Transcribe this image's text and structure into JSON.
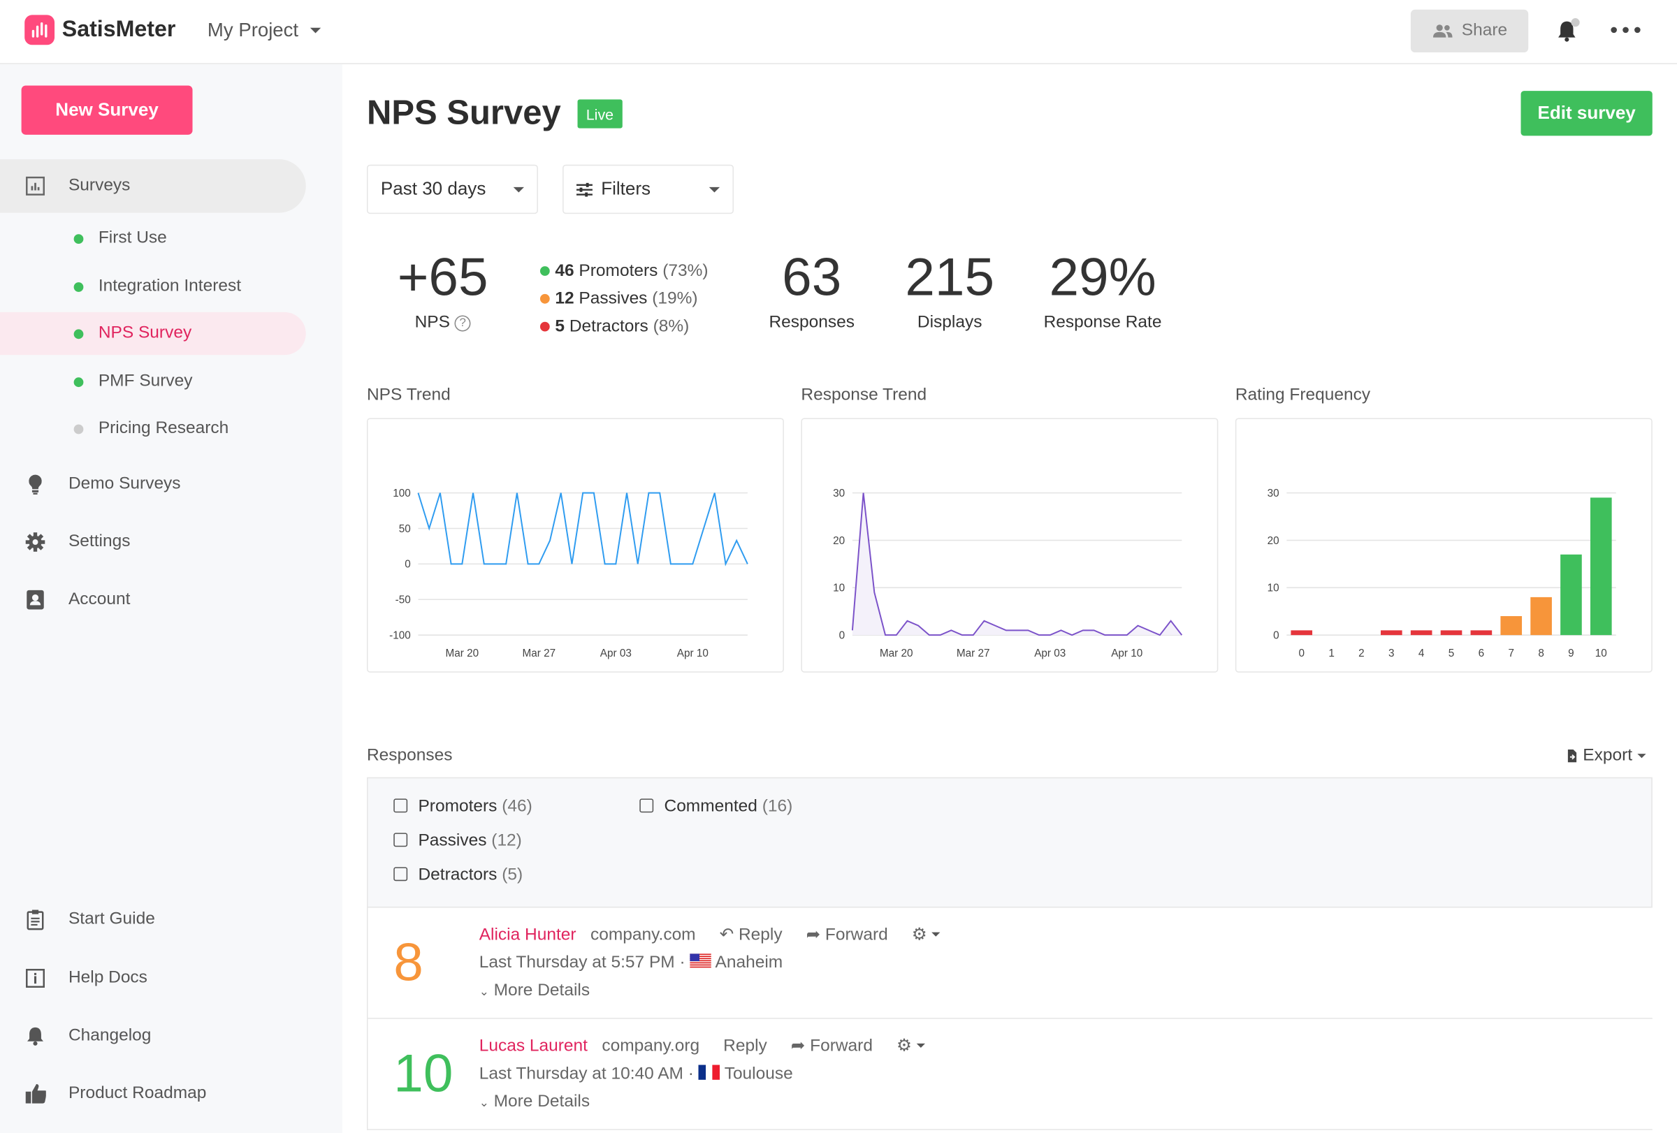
{
  "header": {
    "brand": "SatisMeter",
    "project": "My Project",
    "share": "Share"
  },
  "sidebar": {
    "new_survey": "New Survey",
    "surveys": "Surveys",
    "survey_items": [
      {
        "label": "First Use",
        "status": "active"
      },
      {
        "label": "Integration Interest",
        "status": "active"
      },
      {
        "label": "NPS Survey",
        "status": "active",
        "selected": true
      },
      {
        "label": "PMF Survey",
        "status": "active"
      },
      {
        "label": "Pricing Research",
        "status": "inactive"
      }
    ],
    "items": [
      {
        "label": "Demo Surveys",
        "icon": "lightbulb-icon"
      },
      {
        "label": "Settings",
        "icon": "gear-icon"
      },
      {
        "label": "Account",
        "icon": "contact-card-icon"
      }
    ],
    "bottom": [
      {
        "label": "Start Guide",
        "icon": "clipboard-icon"
      },
      {
        "label": "Help Docs",
        "icon": "info-book-icon"
      },
      {
        "label": "Changelog",
        "icon": "bell-icon"
      },
      {
        "label": "Product Roadmap",
        "icon": "thumbs-up-icon"
      }
    ]
  },
  "main": {
    "title": "NPS Survey",
    "badge": "Live",
    "edit": "Edit survey",
    "period": "Past 30 days",
    "filters": "Filters",
    "stats": {
      "nps": "+65",
      "nps_label": "NPS",
      "promoters_n": "46",
      "promoters_l": "Promoters",
      "promoters_p": "(73%)",
      "passives_n": "12",
      "passives_l": "Passives",
      "passives_p": "(19%)",
      "detractors_n": "5",
      "detractors_l": "Detractors",
      "detractors_p": "(8%)",
      "responses": "63",
      "responses_label": "Responses",
      "displays": "215",
      "displays_label": "Displays",
      "rate": "29%",
      "rate_label": "Response Rate"
    },
    "responses_title": "Responses",
    "export": "Export",
    "filter_opts": [
      {
        "label": "Promoters",
        "count": "(46)"
      },
      {
        "label": "Passives",
        "count": "(12)"
      },
      {
        "label": "Detractors",
        "count": "(5)"
      },
      {
        "label": "Commented",
        "count": "(16)"
      }
    ],
    "rows": [
      {
        "score": "8",
        "color": "#f7953a",
        "name": "Alicia Hunter",
        "company": "company.com",
        "reply": "Reply",
        "forward": "Forward",
        "time": "Last Thursday at 5:57 PM",
        "city": "Anaheim",
        "flag": "us",
        "more": "More Details"
      },
      {
        "score": "10",
        "color": "#3fbf5c",
        "name": "Lucas Laurent",
        "company": "company.org",
        "reply": "Reply",
        "forward": "Forward",
        "time": "Last Thursday at 10:40 AM",
        "city": "Toulouse",
        "flag": "fr",
        "more": "More Details"
      }
    ]
  },
  "colors": {
    "brand": "#ff4a7d",
    "promoter": "#3fbf5c",
    "passive": "#f7953a",
    "detractor": "#e5353b",
    "nps_line": "#2f9cf0",
    "response_line": "#7b52c9"
  },
  "chart_data": [
    {
      "type": "line",
      "title": "NPS Trend",
      "x_ticks": [
        "Mar 20",
        "Mar 27",
        "Apr 03",
        "Apr 10"
      ],
      "x_start": "Mar 16",
      "x_end": "Apr 15",
      "ylim": [
        -100,
        100
      ],
      "y_ticks": [
        100,
        50,
        0,
        -50,
        -100
      ],
      "grid": true,
      "values": [
        100,
        50,
        100,
        0,
        0,
        100,
        0,
        0,
        0,
        100,
        0,
        0,
        33,
        100,
        0,
        100,
        100,
        0,
        0,
        100,
        0,
        100,
        100,
        0,
        0,
        0,
        50,
        100,
        0,
        33,
        0
      ]
    },
    {
      "type": "area",
      "title": "Response Trend",
      "x_ticks": [
        "Mar 20",
        "Mar 27",
        "Apr 03",
        "Apr 10"
      ],
      "x_start": "Mar 16",
      "x_end": "Apr 15",
      "ylim": [
        0,
        30
      ],
      "y_ticks": [
        30,
        20,
        10,
        0
      ],
      "grid": true,
      "values": [
        1,
        30,
        9,
        0,
        0,
        3,
        2,
        0,
        0,
        1,
        0,
        0,
        3,
        2,
        1,
        1,
        1,
        0,
        0,
        1,
        0,
        1,
        1,
        0,
        0,
        0,
        2,
        1,
        0,
        3,
        0
      ]
    },
    {
      "type": "bar",
      "title": "Rating Frequency",
      "categories": [
        "0",
        "1",
        "2",
        "3",
        "4",
        "5",
        "6",
        "7",
        "8",
        "9",
        "10"
      ],
      "ylim": [
        0,
        30
      ],
      "y_ticks": [
        30,
        20,
        10,
        0
      ],
      "grid": true,
      "values": [
        1,
        0,
        0,
        1,
        1,
        1,
        1,
        4,
        8,
        17,
        29
      ]
    }
  ]
}
